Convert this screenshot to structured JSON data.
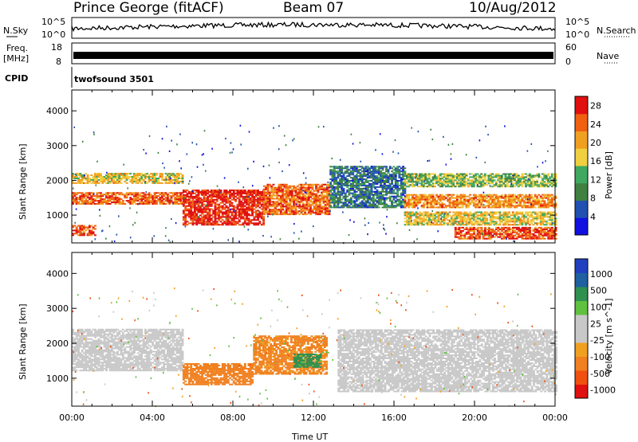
{
  "header": {
    "station": "Prince George (fitACF)",
    "beam": "Beam 07",
    "date": "10/Aug/2012"
  },
  "strips": {
    "nsky_label": "N.Sky",
    "nsky_ticks": [
      "10^5",
      "10^0"
    ],
    "nsearch_label": "N.Search",
    "nsearch_ticks": [
      "10^5",
      "10^0"
    ],
    "freq_label": "Freq.",
    "freq_unit": "[MHz]",
    "freq_ticks": [
      "18",
      "8"
    ],
    "nave_label": "Nave",
    "nave_ticks": [
      "60",
      "0"
    ],
    "cpid_label": "CPID",
    "cpid_value": "twofsound 3501"
  },
  "colors": {
    "power_scale": [
      "#1010e0",
      "#2050b0",
      "#408040",
      "#40a860",
      "#f0d040",
      "#f0a020",
      "#f06010",
      "#e01010"
    ],
    "velocity_scale": [
      "#2040c0",
      "#2060a0",
      "#309050",
      "#60c040",
      "#c8c8c8",
      "#c8c8c8",
      "#f0a020",
      "#f08020",
      "#f05010",
      "#e01010"
    ],
    "ground_scatter": "#c8c8c8"
  },
  "chart_data": [
    {
      "type": "heatmap",
      "title": "",
      "xlabel": "",
      "ylabel": "Slant Range [km]",
      "x_ticks": [
        "00:00",
        "04:00",
        "08:00",
        "12:00",
        "16:00",
        "20:00",
        "00:00"
      ],
      "y_ticks": [
        1000,
        2000,
        3000,
        4000
      ],
      "ylim": [
        200,
        4600
      ],
      "xlim_hours": [
        0,
        24
      ],
      "colorbar": {
        "label": "Power [dB]",
        "ticks": [
          4,
          8,
          12,
          16,
          20,
          24,
          28
        ],
        "range": [
          0,
          30
        ]
      },
      "scatter_bands": [
        {
          "t0": 0.0,
          "t1": 5.5,
          "r0": 1900,
          "r1": 2200,
          "power": 18
        },
        {
          "t0": 0.0,
          "t1": 5.5,
          "r0": 1300,
          "r1": 1650,
          "power": 24
        },
        {
          "t0": 0.0,
          "t1": 1.2,
          "r0": 400,
          "r1": 700,
          "power": 26
        },
        {
          "t0": 5.5,
          "t1": 9.5,
          "r0": 700,
          "r1": 1700,
          "power": 28
        },
        {
          "t0": 9.5,
          "t1": 12.8,
          "r0": 1000,
          "r1": 1900,
          "power": 24
        },
        {
          "t0": 12.8,
          "t1": 16.5,
          "r0": 1200,
          "r1": 2400,
          "power": 8
        },
        {
          "t0": 16.5,
          "t1": 24.0,
          "r0": 1800,
          "r1": 2200,
          "power": 14
        },
        {
          "t0": 16.5,
          "t1": 24.0,
          "r0": 1200,
          "r1": 1600,
          "power": 22
        },
        {
          "t0": 16.5,
          "t1": 24.0,
          "r0": 700,
          "r1": 1100,
          "power": 18
        },
        {
          "t0": 19.0,
          "t1": 24.0,
          "r0": 300,
          "r1": 650,
          "power": 26
        }
      ]
    },
    {
      "type": "heatmap",
      "title": "",
      "xlabel": "Time UT",
      "ylabel": "Slant Range [km]",
      "x_ticks": [
        "00:00",
        "04:00",
        "08:00",
        "12:00",
        "16:00",
        "20:00",
        "00:00"
      ],
      "y_ticks": [
        1000,
        2000,
        3000,
        4000
      ],
      "ylim": [
        200,
        4600
      ],
      "xlim_hours": [
        0,
        24
      ],
      "colorbar": {
        "label": "Velocity [m s^-1]",
        "ticks": [
          1000,
          500,
          100,
          25,
          -25,
          -100,
          -500,
          -1000
        ]
      },
      "velocity_bands": [
        {
          "t0": 0.0,
          "t1": 5.5,
          "r0": 1200,
          "r1": 2400,
          "vel": "ground"
        },
        {
          "t0": 5.5,
          "t1": 9.0,
          "r0": 800,
          "r1": 1400,
          "vel": -300
        },
        {
          "t0": 9.0,
          "t1": 12.6,
          "r0": 1100,
          "r1": 2200,
          "vel": -200
        },
        {
          "t0": 11.0,
          "t1": 12.3,
          "r0": 1300,
          "r1": 1700,
          "vel": 600
        },
        {
          "t0": 13.2,
          "t1": 24.0,
          "r0": 600,
          "r1": 2400,
          "vel": "ground"
        }
      ]
    }
  ]
}
